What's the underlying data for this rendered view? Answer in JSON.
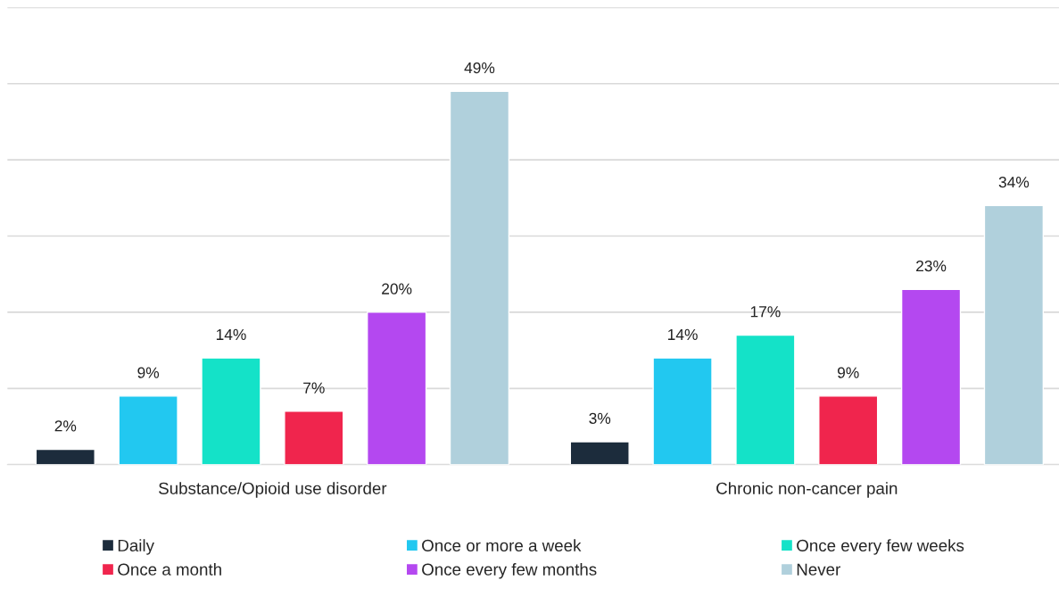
{
  "chart_data": {
    "type": "bar",
    "categories": [
      "Substance/Opioid use disorder",
      "Chronic non-cancer pain"
    ],
    "series": [
      {
        "name": "Daily",
        "color": "#1c2c3c",
        "values": [
          2,
          3
        ],
        "value_labels": [
          "2%",
          "3%"
        ]
      },
      {
        "name": "Once or more a week",
        "color": "#22c8f0",
        "values": [
          9,
          14
        ],
        "value_labels": [
          "9%",
          "14%"
        ]
      },
      {
        "name": "Once every few weeks",
        "color": "#14e2c8",
        "values": [
          14,
          17
        ],
        "value_labels": [
          "14%",
          "17%"
        ]
      },
      {
        "name": "Once a month",
        "color": "#f0254d",
        "values": [
          7,
          9
        ],
        "value_labels": [
          "7%",
          "9%"
        ]
      },
      {
        "name": "Once every few months",
        "color": "#b448f0",
        "values": [
          20,
          23
        ],
        "value_labels": [
          "20%",
          "23%"
        ]
      },
      {
        "name": "Never",
        "color": "#b0d0dc",
        "values": [
          49,
          34
        ],
        "value_labels": [
          "49%",
          "34%"
        ]
      }
    ],
    "tick_labels": "x",
    "grid": "y",
    "legend": "bottom"
  }
}
